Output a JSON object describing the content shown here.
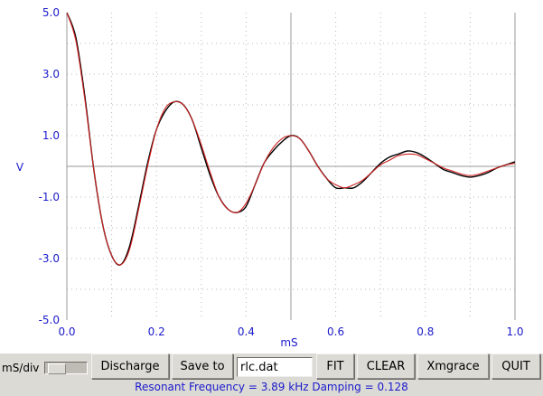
{
  "chart_data": {
    "type": "line",
    "xlabel": "mS",
    "ylabel": "V",
    "xlim": [
      0.0,
      1.0
    ],
    "ylim": [
      -5.0,
      5.0
    ],
    "x_ticks": [
      "0.0",
      "0.2",
      "0.4",
      "0.6",
      "0.8",
      "1.0"
    ],
    "y_ticks": [
      "5.0",
      "3.0",
      "1.0",
      "-1.0",
      "-3.0",
      "-5.0"
    ],
    "grid": true,
    "series": [
      {
        "color": "#000000",
        "x": [
          0.0,
          0.02,
          0.04,
          0.06,
          0.08,
          0.1,
          0.12,
          0.14,
          0.16,
          0.18,
          0.2,
          0.22,
          0.24,
          0.26,
          0.28,
          0.3,
          0.32,
          0.34,
          0.36,
          0.38,
          0.4,
          0.42,
          0.44,
          0.46,
          0.48,
          0.5,
          0.52,
          0.54,
          0.56,
          0.58,
          0.6,
          0.62,
          0.64,
          0.66,
          0.68,
          0.7,
          0.72,
          0.74,
          0.76,
          0.78,
          0.8,
          0.82,
          0.84,
          0.86,
          0.88,
          0.9,
          0.92,
          0.94,
          0.96,
          0.98,
          1.0
        ],
        "y": [
          5.0,
          4.2,
          2.3,
          -0.1,
          -1.9,
          -2.9,
          -3.2,
          -2.6,
          -1.3,
          0.1,
          1.2,
          1.8,
          2.1,
          2.0,
          1.5,
          0.6,
          -0.3,
          -1.0,
          -1.4,
          -1.5,
          -1.3,
          -0.6,
          0.1,
          0.5,
          0.8,
          1.0,
          0.9,
          0.5,
          0.0,
          -0.4,
          -0.7,
          -0.7,
          -0.7,
          -0.5,
          -0.2,
          0.1,
          0.3,
          0.4,
          0.5,
          0.45,
          0.3,
          0.1,
          -0.1,
          -0.2,
          -0.3,
          -0.35,
          -0.3,
          -0.2,
          -0.05,
          0.05,
          0.15
        ]
      },
      {
        "color": "#d02020",
        "x": [
          0.0,
          0.02,
          0.04,
          0.06,
          0.08,
          0.1,
          0.12,
          0.14,
          0.16,
          0.18,
          0.2,
          0.22,
          0.24,
          0.26,
          0.28,
          0.3,
          0.32,
          0.34,
          0.36,
          0.38,
          0.4,
          0.42,
          0.44,
          0.46,
          0.48,
          0.5,
          0.52,
          0.54,
          0.56,
          0.58,
          0.6,
          0.62,
          0.64,
          0.66,
          0.68,
          0.7,
          0.72,
          0.74,
          0.76,
          0.78,
          0.8,
          0.82,
          0.84,
          0.86,
          0.88,
          0.9,
          0.92,
          0.94,
          0.96,
          0.98,
          1.0
        ],
        "y": [
          5.0,
          4.1,
          2.2,
          -0.1,
          -1.9,
          -2.9,
          -3.2,
          -2.7,
          -1.4,
          0.0,
          1.2,
          1.9,
          2.1,
          2.0,
          1.5,
          0.7,
          -0.2,
          -1.0,
          -1.4,
          -1.5,
          -1.2,
          -0.6,
          0.1,
          0.6,
          0.9,
          1.0,
          0.9,
          0.5,
          0.0,
          -0.4,
          -0.6,
          -0.7,
          -0.6,
          -0.45,
          -0.2,
          0.05,
          0.2,
          0.35,
          0.4,
          0.38,
          0.25,
          0.1,
          -0.05,
          -0.15,
          -0.25,
          -0.3,
          -0.25,
          -0.15,
          -0.05,
          0.05,
          0.1
        ]
      }
    ]
  },
  "controls": {
    "timebase_label": "mS/div",
    "discharge_label": "Discharge",
    "save_label": "Save to",
    "filename_value": "rlc.dat",
    "fit_label": "FIT",
    "clear_label": "CLEAR",
    "xmgrace_label": "Xmgrace",
    "quit_label": "QUIT"
  },
  "status": {
    "text": "Resonant Frequency =  3.89 kHz Damping = 0.128"
  },
  "colors": {
    "axis_text": "#1a1acc",
    "plot_background": "#ffffff",
    "window_background": "#dcdad5"
  }
}
